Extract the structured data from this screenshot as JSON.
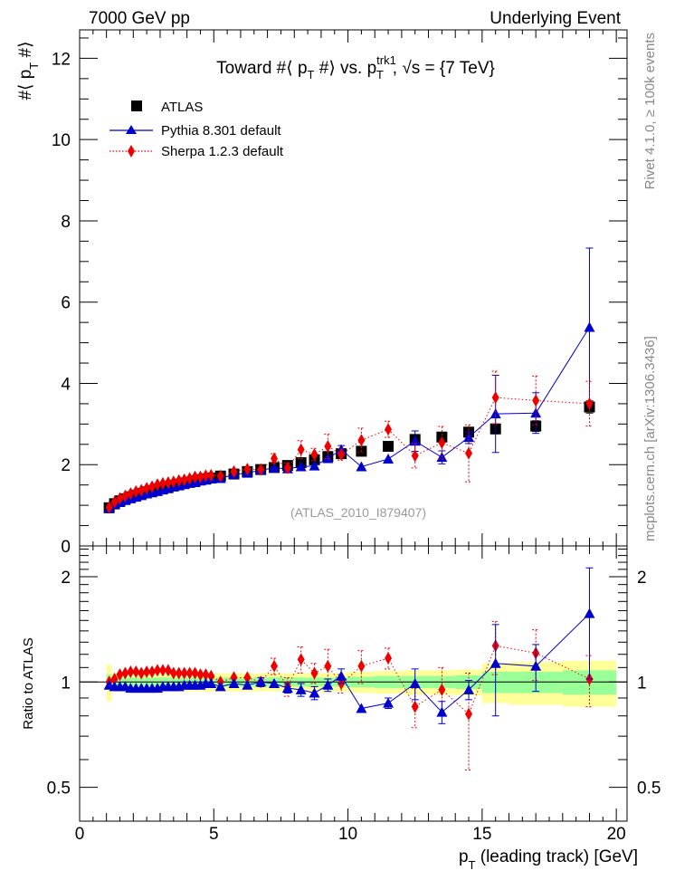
{
  "header": {
    "left": "7000 GeV pp",
    "right": "Underlying Event"
  },
  "side_labels": {
    "rivet": "Rivet 4.1.0, ≥ 100k events",
    "mcplots": "mcplots.cern.ch [arXiv:1306.3436]"
  },
  "watermark": "(ATLAS_2010_I879407)",
  "colors": {
    "atlas": "#000000",
    "pythia": "#0000cc",
    "sherpa": "#ee0000",
    "band_inner": "#99ff99",
    "band_outer": "#ffff99"
  },
  "chart_data": [
    {
      "type": "scatter",
      "panel": "main",
      "title": "Toward #⟨ p_T #⟩ vs. p_T^trk1, √s = {7 TeV}",
      "title_parts": {
        "prefix": "Toward #⟨ p",
        "sub1": "T",
        "mid": " #⟩ vs. p",
        "sup2": "trk1",
        "sub2": "T",
        "suffix": ", √s = {7 TeV}"
      },
      "xlabel": "p_T (leading track) [GeV]",
      "ylabel": "#⟨ p_T #⟩",
      "xlim": [
        0,
        20.4
      ],
      "ylim": [
        0,
        12.7
      ],
      "yticks": [
        0,
        2,
        4,
        6,
        8,
        10,
        12
      ],
      "xticks": [
        0,
        5,
        10,
        15,
        20
      ],
      "legend": {
        "placement": "top-left",
        "entries": [
          "ATLAS",
          "Pythia 8.301 default",
          "Sherpa 1.2.3 default"
        ]
      },
      "x": [
        1.1,
        1.3,
        1.5,
        1.7,
        1.9,
        2.1,
        2.3,
        2.5,
        2.7,
        2.9,
        3.1,
        3.3,
        3.5,
        3.7,
        3.9,
        4.1,
        4.3,
        4.5,
        4.7,
        4.9,
        5.25,
        5.75,
        6.25,
        6.75,
        7.25,
        7.75,
        8.25,
        8.75,
        9.25,
        9.75,
        10.5,
        11.5,
        12.5,
        13.5,
        14.5,
        15.5,
        17.0,
        19.0
      ],
      "series": [
        {
          "name": "ATLAS",
          "marker": "square",
          "values": [
            0.94,
            1.04,
            1.11,
            1.16,
            1.21,
            1.25,
            1.29,
            1.33,
            1.36,
            1.4,
            1.43,
            1.46,
            1.49,
            1.52,
            1.55,
            1.57,
            1.6,
            1.63,
            1.65,
            1.67,
            1.72,
            1.77,
            1.83,
            1.88,
            1.93,
            1.98,
            2.05,
            2.12,
            2.2,
            2.27,
            2.33,
            2.45,
            2.62,
            2.68,
            2.8,
            2.88,
            2.95,
            3.42
          ],
          "yerr": [
            0.02,
            0.02,
            0.02,
            0.02,
            0.02,
            0.02,
            0.02,
            0.02,
            0.02,
            0.02,
            0.02,
            0.02,
            0.02,
            0.02,
            0.02,
            0.02,
            0.02,
            0.02,
            0.02,
            0.02,
            0.03,
            0.03,
            0.03,
            0.03,
            0.03,
            0.04,
            0.04,
            0.04,
            0.05,
            0.05,
            0.06,
            0.07,
            0.08,
            0.09,
            0.1,
            0.12,
            0.13,
            0.15
          ]
        },
        {
          "name": "Pythia 8.301 default",
          "marker": "triangle",
          "values": [
            0.92,
            1.01,
            1.07,
            1.12,
            1.16,
            1.2,
            1.24,
            1.28,
            1.31,
            1.34,
            1.38,
            1.41,
            1.45,
            1.48,
            1.51,
            1.54,
            1.56,
            1.6,
            1.62,
            1.65,
            1.66,
            1.76,
            1.79,
            1.87,
            1.92,
            1.9,
            1.95,
            1.97,
            2.15,
            2.37,
            1.95,
            2.14,
            2.58,
            2.18,
            2.67,
            3.25,
            3.27,
            5.38
          ],
          "yerr": [
            0.01,
            0.01,
            0.01,
            0.01,
            0.01,
            0.01,
            0.01,
            0.01,
            0.01,
            0.01,
            0.01,
            0.01,
            0.01,
            0.01,
            0.01,
            0.01,
            0.01,
            0.01,
            0.01,
            0.01,
            0.02,
            0.02,
            0.02,
            0.03,
            0.04,
            0.05,
            0.05,
            0.06,
            0.07,
            0.1,
            0.04,
            0.05,
            0.25,
            0.16,
            0.15,
            0.95,
            0.5,
            1.95
          ]
        },
        {
          "name": "Sherpa 1.2.3 default",
          "marker": "diamond",
          "values": [
            0.95,
            1.08,
            1.17,
            1.23,
            1.29,
            1.34,
            1.37,
            1.42,
            1.46,
            1.51,
            1.54,
            1.56,
            1.58,
            1.61,
            1.63,
            1.66,
            1.7,
            1.7,
            1.73,
            1.74,
            1.72,
            1.83,
            1.89,
            1.88,
            2.15,
            1.92,
            2.37,
            2.25,
            2.45,
            2.25,
            2.6,
            2.87,
            2.22,
            2.54,
            2.28,
            3.65,
            3.58,
            3.5
          ],
          "yerr": [
            0.01,
            0.01,
            0.01,
            0.01,
            0.01,
            0.01,
            0.01,
            0.01,
            0.01,
            0.01,
            0.01,
            0.01,
            0.01,
            0.01,
            0.01,
            0.01,
            0.01,
            0.01,
            0.01,
            0.01,
            0.02,
            0.03,
            0.04,
            0.05,
            0.12,
            0.12,
            0.22,
            0.15,
            0.3,
            0.14,
            0.3,
            0.2,
            0.3,
            0.4,
            0.7,
            0.65,
            0.6,
            0.55
          ]
        }
      ]
    },
    {
      "type": "scatter",
      "panel": "ratio",
      "ylabel": "Ratio to ATLAS",
      "xlabel": "p_T (leading track) [GeV]",
      "yscale": "log",
      "ylim": [
        0.4,
        2.45
      ],
      "yticks": [
        0.5,
        1,
        2
      ],
      "xlim": [
        0,
        20.4
      ],
      "xticks": [
        0,
        5,
        10,
        15,
        20
      ],
      "band_edges": [
        1.0,
        1.2,
        1.4,
        1.6,
        1.8,
        2.0,
        2.2,
        2.4,
        2.6,
        2.8,
        3.0,
        3.2,
        3.4,
        3.6,
        3.8,
        4.0,
        4.2,
        4.4,
        4.6,
        4.8,
        5.0,
        5.5,
        6.0,
        6.5,
        7.0,
        7.5,
        8.0,
        8.5,
        9.0,
        9.5,
        10.0,
        11.0,
        12.0,
        13.0,
        14.0,
        15.0,
        16.0,
        18.0,
        20.0
      ],
      "band_inner_halfwidth": [
        0.05,
        0.03,
        0.03,
        0.03,
        0.03,
        0.03,
        0.03,
        0.03,
        0.03,
        0.03,
        0.03,
        0.03,
        0.03,
        0.03,
        0.03,
        0.03,
        0.03,
        0.03,
        0.03,
        0.03,
        0.03,
        0.03,
        0.03,
        0.03,
        0.03,
        0.03,
        0.03,
        0.03,
        0.03,
        0.03,
        0.035,
        0.04,
        0.04,
        0.04,
        0.045,
        0.07,
        0.07,
        0.08
      ],
      "band_outer_halfwidth": [
        0.12,
        0.06,
        0.06,
        0.06,
        0.06,
        0.06,
        0.06,
        0.06,
        0.06,
        0.06,
        0.06,
        0.06,
        0.06,
        0.06,
        0.06,
        0.06,
        0.06,
        0.06,
        0.06,
        0.06,
        0.06,
        0.06,
        0.06,
        0.06,
        0.06,
        0.06,
        0.06,
        0.06,
        0.06,
        0.06,
        0.07,
        0.075,
        0.08,
        0.08,
        0.085,
        0.13,
        0.14,
        0.15
      ],
      "series": [
        {
          "name": "Pythia 8.301 default",
          "marker": "triangle",
          "values": [
            0.98,
            0.97,
            0.97,
            0.97,
            0.96,
            0.96,
            0.96,
            0.96,
            0.96,
            0.96,
            0.97,
            0.97,
            0.97,
            0.97,
            0.98,
            0.98,
            0.98,
            0.98,
            0.99,
            0.99,
            0.97,
            0.99,
            0.98,
            1.0,
            0.99,
            0.96,
            0.95,
            0.93,
            0.98,
            1.04,
            0.84,
            0.87,
            0.99,
            0.82,
            0.95,
            1.13,
            1.11,
            1.57
          ],
          "yerr": [
            0.01,
            0.01,
            0.01,
            0.01,
            0.01,
            0.01,
            0.01,
            0.01,
            0.01,
            0.01,
            0.01,
            0.01,
            0.01,
            0.01,
            0.01,
            0.01,
            0.01,
            0.01,
            0.01,
            0.01,
            0.01,
            0.01,
            0.01,
            0.03,
            0.02,
            0.03,
            0.04,
            0.04,
            0.04,
            0.05,
            0.02,
            0.03,
            0.1,
            0.06,
            0.06,
            0.33,
            0.17,
            0.55
          ]
        },
        {
          "name": "Sherpa 1.2.3 default",
          "marker": "diamond",
          "values": [
            1.0,
            1.02,
            1.05,
            1.06,
            1.07,
            1.07,
            1.06,
            1.07,
            1.07,
            1.08,
            1.08,
            1.08,
            1.06,
            1.06,
            1.06,
            1.06,
            1.06,
            1.05,
            1.05,
            1.04,
            1.0,
            1.03,
            1.03,
            1.0,
            1.11,
            0.97,
            1.16,
            1.06,
            1.11,
            0.99,
            1.11,
            1.17,
            0.85,
            0.95,
            0.81,
            1.27,
            1.21,
            1.02
          ],
          "yerr": [
            0.01,
            0.01,
            0.01,
            0.01,
            0.01,
            0.01,
            0.01,
            0.01,
            0.01,
            0.01,
            0.01,
            0.01,
            0.01,
            0.01,
            0.01,
            0.01,
            0.01,
            0.01,
            0.01,
            0.01,
            0.01,
            0.02,
            0.02,
            0.02,
            0.06,
            0.06,
            0.1,
            0.07,
            0.13,
            0.06,
            0.12,
            0.08,
            0.11,
            0.15,
            0.25,
            0.22,
            0.2,
            0.17
          ]
        }
      ]
    }
  ]
}
